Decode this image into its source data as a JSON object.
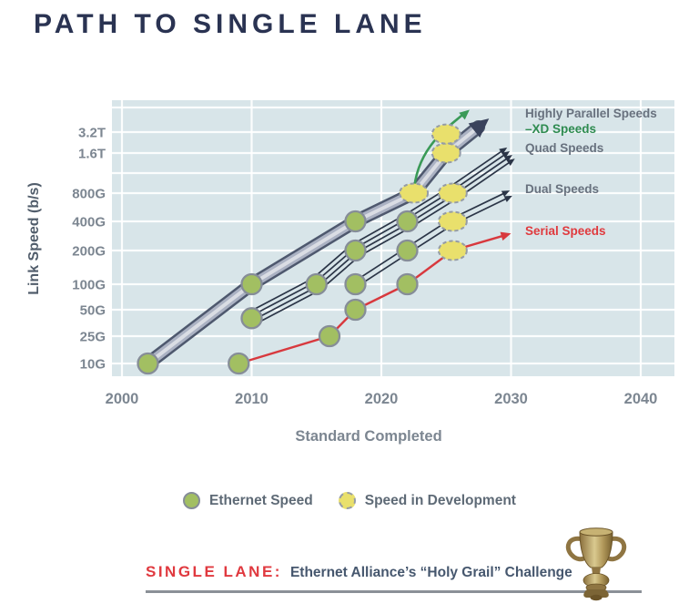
{
  "page": {
    "title": "PATH TO SINGLE LANE"
  },
  "chart_data": {
    "type": "line",
    "xlabel": "Standard Completed",
    "ylabel": "Link Speed (b/s)",
    "x_ticks": [
      {
        "label": "2000",
        "value": 2000
      },
      {
        "label": "2010",
        "value": 2010
      },
      {
        "label": "2020",
        "value": 2020
      },
      {
        "label": "2030",
        "value": 2030
      },
      {
        "label": "2040",
        "value": 2040
      }
    ],
    "y_ticks": [
      {
        "label": "10G",
        "value": 10
      },
      {
        "label": "25G",
        "value": 25
      },
      {
        "label": "50G",
        "value": 50
      },
      {
        "label": "100G",
        "value": 100
      },
      {
        "label": "200G",
        "value": 200
      },
      {
        "label": "400G",
        "value": 400
      },
      {
        "label": "800G",
        "value": 800
      },
      {
        "label": "1.6T",
        "value": 1600
      },
      {
        "label": "3.2T",
        "value": 3200
      }
    ],
    "y_unit": "Gb/s",
    "plot_bg": "#d8e5e9",
    "grid_color": "rgba(255,255,255,0.9)",
    "series": [
      {
        "name": "Highly Parallel Speeds",
        "style": "thick_band",
        "band_colors": [
          "#4e586e",
          "#abb2c3",
          "#dadde4"
        ],
        "arrow_color": "#39425c",
        "completed": [
          [
            2002,
            10
          ],
          [
            2010,
            100
          ],
          [
            2018,
            400
          ]
        ],
        "in_development": [
          [
            2022.5,
            800
          ],
          [
            2025,
            1600
          ]
        ],
        "projection": [
          2028.3,
          4300
        ]
      },
      {
        "name": "XD Speeds",
        "style": "curved_arrow",
        "color": "#3a9a57",
        "branch_from": [
          2022.5,
          800
        ],
        "in_development": [
          [
            2025,
            3000
          ]
        ],
        "projection": [
          2026.8,
          5200
        ]
      },
      {
        "name": "Quad Speeds",
        "style": "quad_lines",
        "color": "#2b3547",
        "completed": [
          [
            2010,
            40
          ],
          [
            2015,
            100
          ],
          [
            2018,
            200
          ],
          [
            2022,
            400
          ]
        ],
        "in_development": [
          [
            2025.5,
            800
          ]
        ],
        "projection": [
          2030,
          1600
        ]
      },
      {
        "name": "Dual Speeds",
        "style": "dual_lines",
        "color": "#2b3547",
        "completed": [
          [
            2018,
            100
          ],
          [
            2022,
            200
          ]
        ],
        "in_development": [
          [
            2025.5,
            400
          ]
        ],
        "projection": [
          2030,
          800
        ]
      },
      {
        "name": "Serial Speeds",
        "style": "single_line",
        "color": "#d8393e",
        "completed": [
          [
            2009,
            10
          ],
          [
            2016,
            25
          ],
          [
            2018,
            50
          ],
          [
            2022,
            100
          ]
        ],
        "in_development": [
          [
            2025.5,
            200
          ]
        ],
        "projection": [
          2030,
          300
        ]
      }
    ],
    "point_styles": {
      "completed": {
        "fill": "#a2bf62",
        "stroke": "#868d98"
      },
      "in_development": {
        "fill": "#e9e06c",
        "stroke": "#959ca6"
      }
    },
    "annotations": [
      {
        "text": "Highly Parallel Speeds",
        "color": "#68717e"
      },
      {
        "text": "–XD Speeds",
        "color": "#2e8b50"
      },
      {
        "text": "Quad Speeds",
        "color": "#68717e"
      },
      {
        "text": "Dual Speeds",
        "color": "#68717e"
      },
      {
        "text": "Serial Speeds",
        "color": "#e03a3e"
      }
    ],
    "legend": [
      {
        "label": "Ethernet Speed",
        "marker": "green-circle"
      },
      {
        "label": "Speed in Development",
        "marker": "yellow-dashed-circle"
      }
    ]
  },
  "footer": {
    "single_lane_label": "SINGLE LANE:",
    "challenge_text": "Ethernet Alliance’s “Holy Grail” Challenge",
    "trophy_icon": "trophy-cup"
  }
}
